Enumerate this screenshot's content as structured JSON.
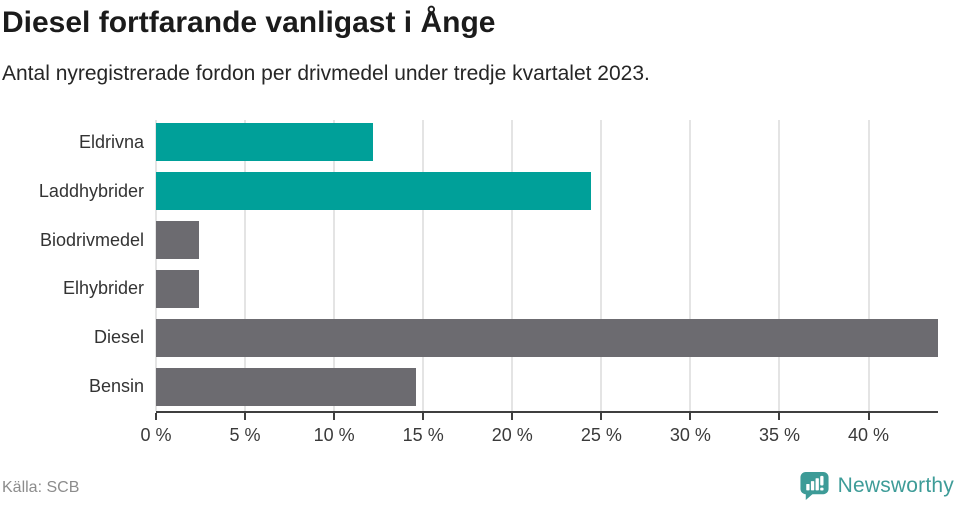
{
  "header": {
    "title": "Diesel fortfarande vanligast i Ånge",
    "subtitle": "Antal nyregistrerade fordon per drivmedel under tredje kvartalet 2023."
  },
  "footer": {
    "source": "Källa: SCB",
    "brand": "Newsworthy"
  },
  "colors": {
    "bar_teal": "#00A099",
    "bar_gray": "#6C6B70",
    "brand_teal": "#3D9B97",
    "grid": "#E4E4E4",
    "axis": "#3F3F3F"
  },
  "chart_data": {
    "type": "bar",
    "orientation": "horizontal",
    "title": "Diesel fortfarande vanligast i Ånge",
    "subtitle": "Antal nyregistrerade fordon per drivmedel under tredje kvartalet 2023.",
    "categories": [
      "Eldrivna",
      "Laddhybrider",
      "Biodrivmedel",
      "Elhybrider",
      "Diesel",
      "Bensin"
    ],
    "values": [
      12.2,
      24.4,
      2.4,
      2.4,
      43.9,
      14.6
    ],
    "bar_colors": [
      "#00A099",
      "#00A099",
      "#6C6B70",
      "#6C6B70",
      "#6C6B70",
      "#6C6B70"
    ],
    "xlabel": "",
    "ylabel": "",
    "xlim": [
      0,
      43.9
    ],
    "x_ticks": [
      0,
      5,
      10,
      15,
      20,
      25,
      30,
      35,
      40
    ],
    "x_tick_labels": [
      "0 %",
      "5 %",
      "10 %",
      "15 %",
      "20 %",
      "25 %",
      "30 %",
      "35 %",
      "40 %"
    ],
    "grid": "vertical",
    "legend": "none"
  }
}
